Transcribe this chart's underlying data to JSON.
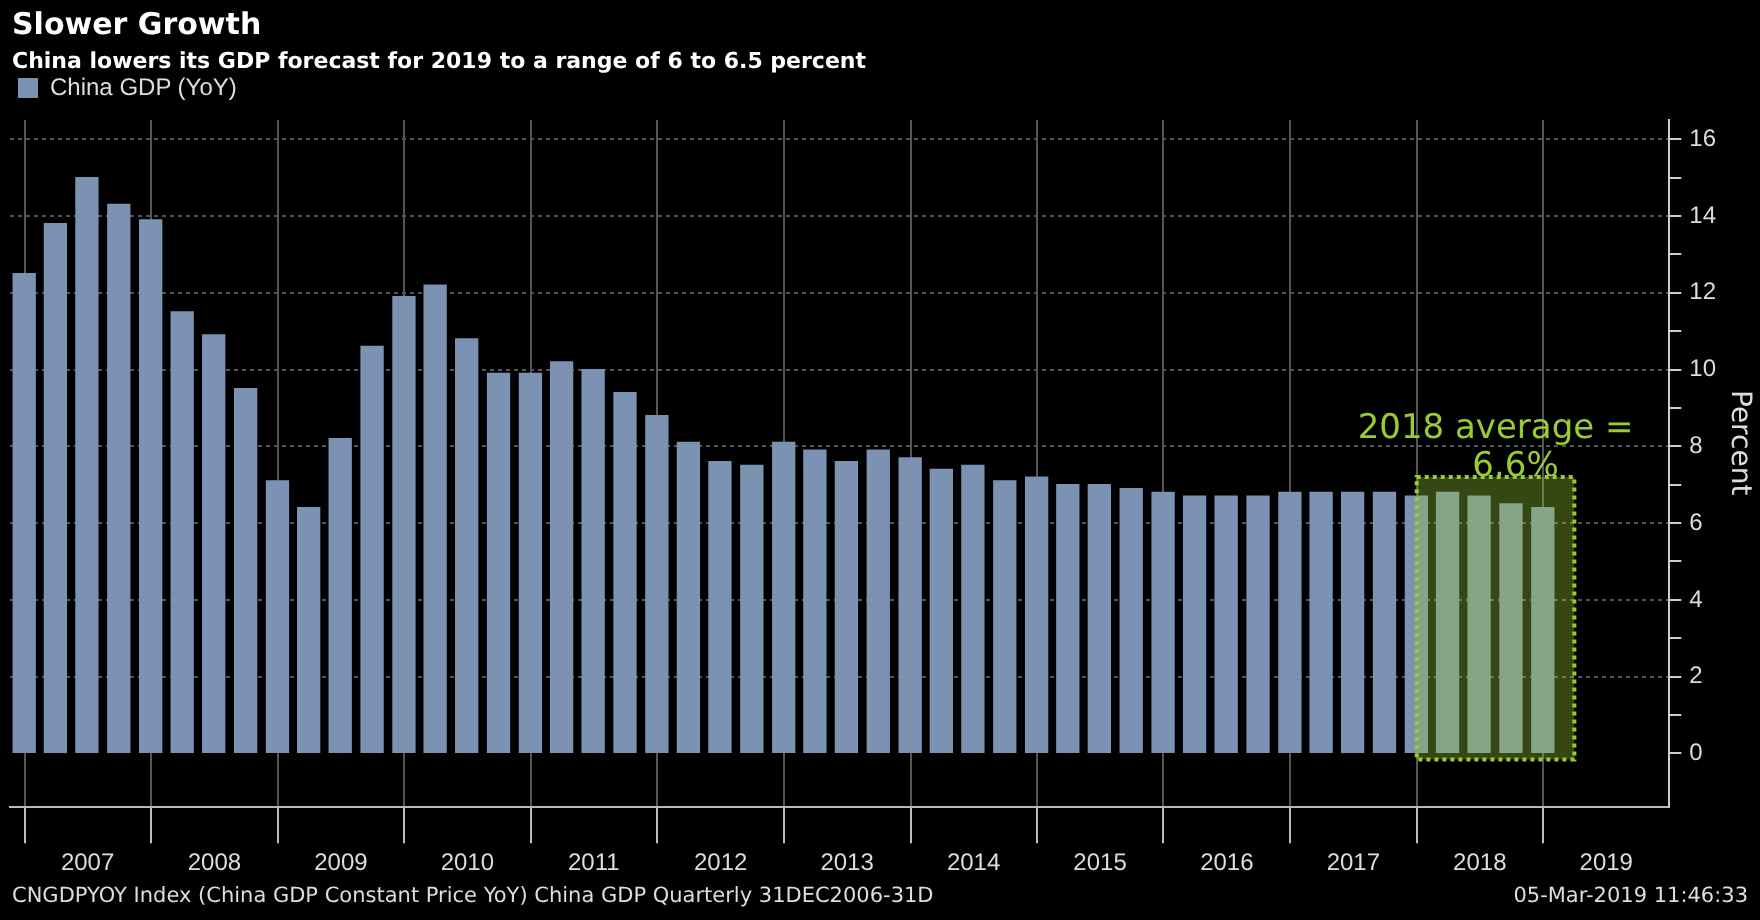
{
  "chart_data": {
    "type": "bar",
    "title": "Slower Growth",
    "subtitle": "China lowers its GDP forecast for 2019 to a range of 6 to 6.5 percent",
    "ylabel": "Percent",
    "x": [
      "2006-12-31",
      "2007-03-31",
      "2007-06-30",
      "2007-09-30",
      "2007-12-31",
      "2008-03-31",
      "2008-06-30",
      "2008-09-30",
      "2008-12-31",
      "2009-03-31",
      "2009-06-30",
      "2009-09-30",
      "2009-12-31",
      "2010-03-31",
      "2010-06-30",
      "2010-09-30",
      "2010-12-31",
      "2011-03-31",
      "2011-06-30",
      "2011-09-30",
      "2011-12-31",
      "2012-03-31",
      "2012-06-30",
      "2012-09-30",
      "2012-12-31",
      "2013-03-31",
      "2013-06-30",
      "2013-09-30",
      "2013-12-31",
      "2014-03-31",
      "2014-06-30",
      "2014-09-30",
      "2014-12-31",
      "2015-03-31",
      "2015-06-30",
      "2015-09-30",
      "2015-12-31",
      "2016-03-31",
      "2016-06-30",
      "2016-09-30",
      "2016-12-31",
      "2017-03-31",
      "2017-06-30",
      "2017-09-30",
      "2017-12-31",
      "2018-03-31",
      "2018-06-30",
      "2018-09-30",
      "2018-12-31"
    ],
    "series": [
      {
        "name": "China GDP (YoY)",
        "color": "#7b92b3",
        "values": [
          12.5,
          13.8,
          15.0,
          14.3,
          13.9,
          11.5,
          10.9,
          9.5,
          7.1,
          6.4,
          8.2,
          10.6,
          11.9,
          12.2,
          10.8,
          9.9,
          9.9,
          10.2,
          10.0,
          9.4,
          8.8,
          8.1,
          7.6,
          7.5,
          8.1,
          7.9,
          7.6,
          7.9,
          7.7,
          7.4,
          7.5,
          7.1,
          7.2,
          7.0,
          7.0,
          6.9,
          6.8,
          6.7,
          6.7,
          6.7,
          6.8,
          6.8,
          6.8,
          6.8,
          6.7,
          6.8,
          6.7,
          6.5,
          6.4
        ]
      }
    ],
    "xlim": [
      "2006-11-20",
      "2019-12-31"
    ],
    "xticks": [
      {
        "value": "2007-01-01",
        "label": null
      },
      {
        "value": "2007-07-02",
        "label": "2007"
      },
      {
        "value": "2008-01-01",
        "label": null
      },
      {
        "value": "2008-07-02",
        "label": "2008"
      },
      {
        "value": "2009-01-01",
        "label": null
      },
      {
        "value": "2009-07-02",
        "label": "2009"
      },
      {
        "value": "2010-01-01",
        "label": null
      },
      {
        "value": "2010-07-02",
        "label": "2010"
      },
      {
        "value": "2011-01-01",
        "label": null
      },
      {
        "value": "2011-07-02",
        "label": "2011"
      },
      {
        "value": "2012-01-01",
        "label": null
      },
      {
        "value": "2012-07-02",
        "label": "2012"
      },
      {
        "value": "2013-01-01",
        "label": null
      },
      {
        "value": "2013-07-02",
        "label": "2013"
      },
      {
        "value": "2014-01-01",
        "label": null
      },
      {
        "value": "2014-07-02",
        "label": "2014"
      },
      {
        "value": "2015-01-01",
        "label": null
      },
      {
        "value": "2015-07-02",
        "label": "2015"
      },
      {
        "value": "2016-01-01",
        "label": null
      },
      {
        "value": "2016-07-02",
        "label": "2016"
      },
      {
        "value": "2017-01-01",
        "label": null
      },
      {
        "value": "2017-07-02",
        "label": "2017"
      },
      {
        "value": "2018-01-01",
        "label": null
      },
      {
        "value": "2018-07-02",
        "label": "2018"
      },
      {
        "value": "2019-01-01",
        "label": null
      },
      {
        "value": "2019-07-02",
        "label": "2019"
      }
    ],
    "ylim": [
      -1.4,
      16.5
    ],
    "yticks": [
      0,
      {
        "value": 1,
        "label": null
      },
      2,
      {
        "value": 3,
        "label": null
      },
      4,
      {
        "value": 5,
        "label": null
      },
      6,
      {
        "value": 7,
        "label": null
      },
      8,
      {
        "value": 9,
        "label": null
      },
      10,
      {
        "value": 11,
        "label": null
      },
      12,
      {
        "value": 13,
        "label": null
      },
      14,
      {
        "value": 15,
        "label": null
      },
      16
    ],
    "grid": true,
    "legend": "top left",
    "bands": [
      {
        "axis": "x",
        "from": "2018-01-01",
        "to": "2019-04-01",
        "label": "2018 average = 6.6%",
        "color": "#99cc33"
      }
    ],
    "annotations": [
      "CNGDPYOY Index (China GDP Constant Price YoY) China GDP  Quarterly 31DEC2006-31D",
      "05-Mar-2019 11:46:33"
    ]
  }
}
